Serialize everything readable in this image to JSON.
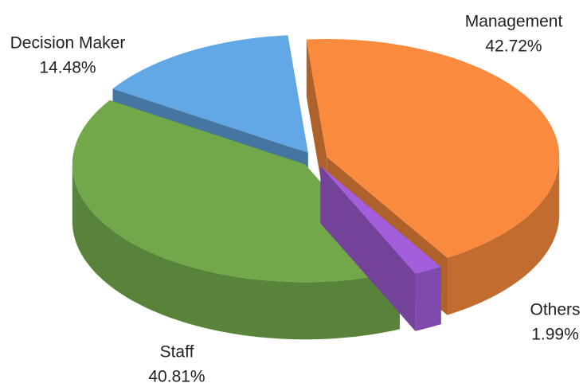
{
  "chart_data": {
    "type": "pie3d",
    "categories": [
      "Management",
      "Others",
      "Staff",
      "Decision Maker"
    ],
    "values": [
      42.72,
      1.99,
      40.81,
      14.48
    ],
    "value_labels": [
      "42.72%",
      "1.99%",
      "40.81%",
      "14.48%"
    ],
    "colors": [
      "#f98a3e",
      "#a35fdb",
      "#72a84a",
      "#63a8e6"
    ]
  }
}
